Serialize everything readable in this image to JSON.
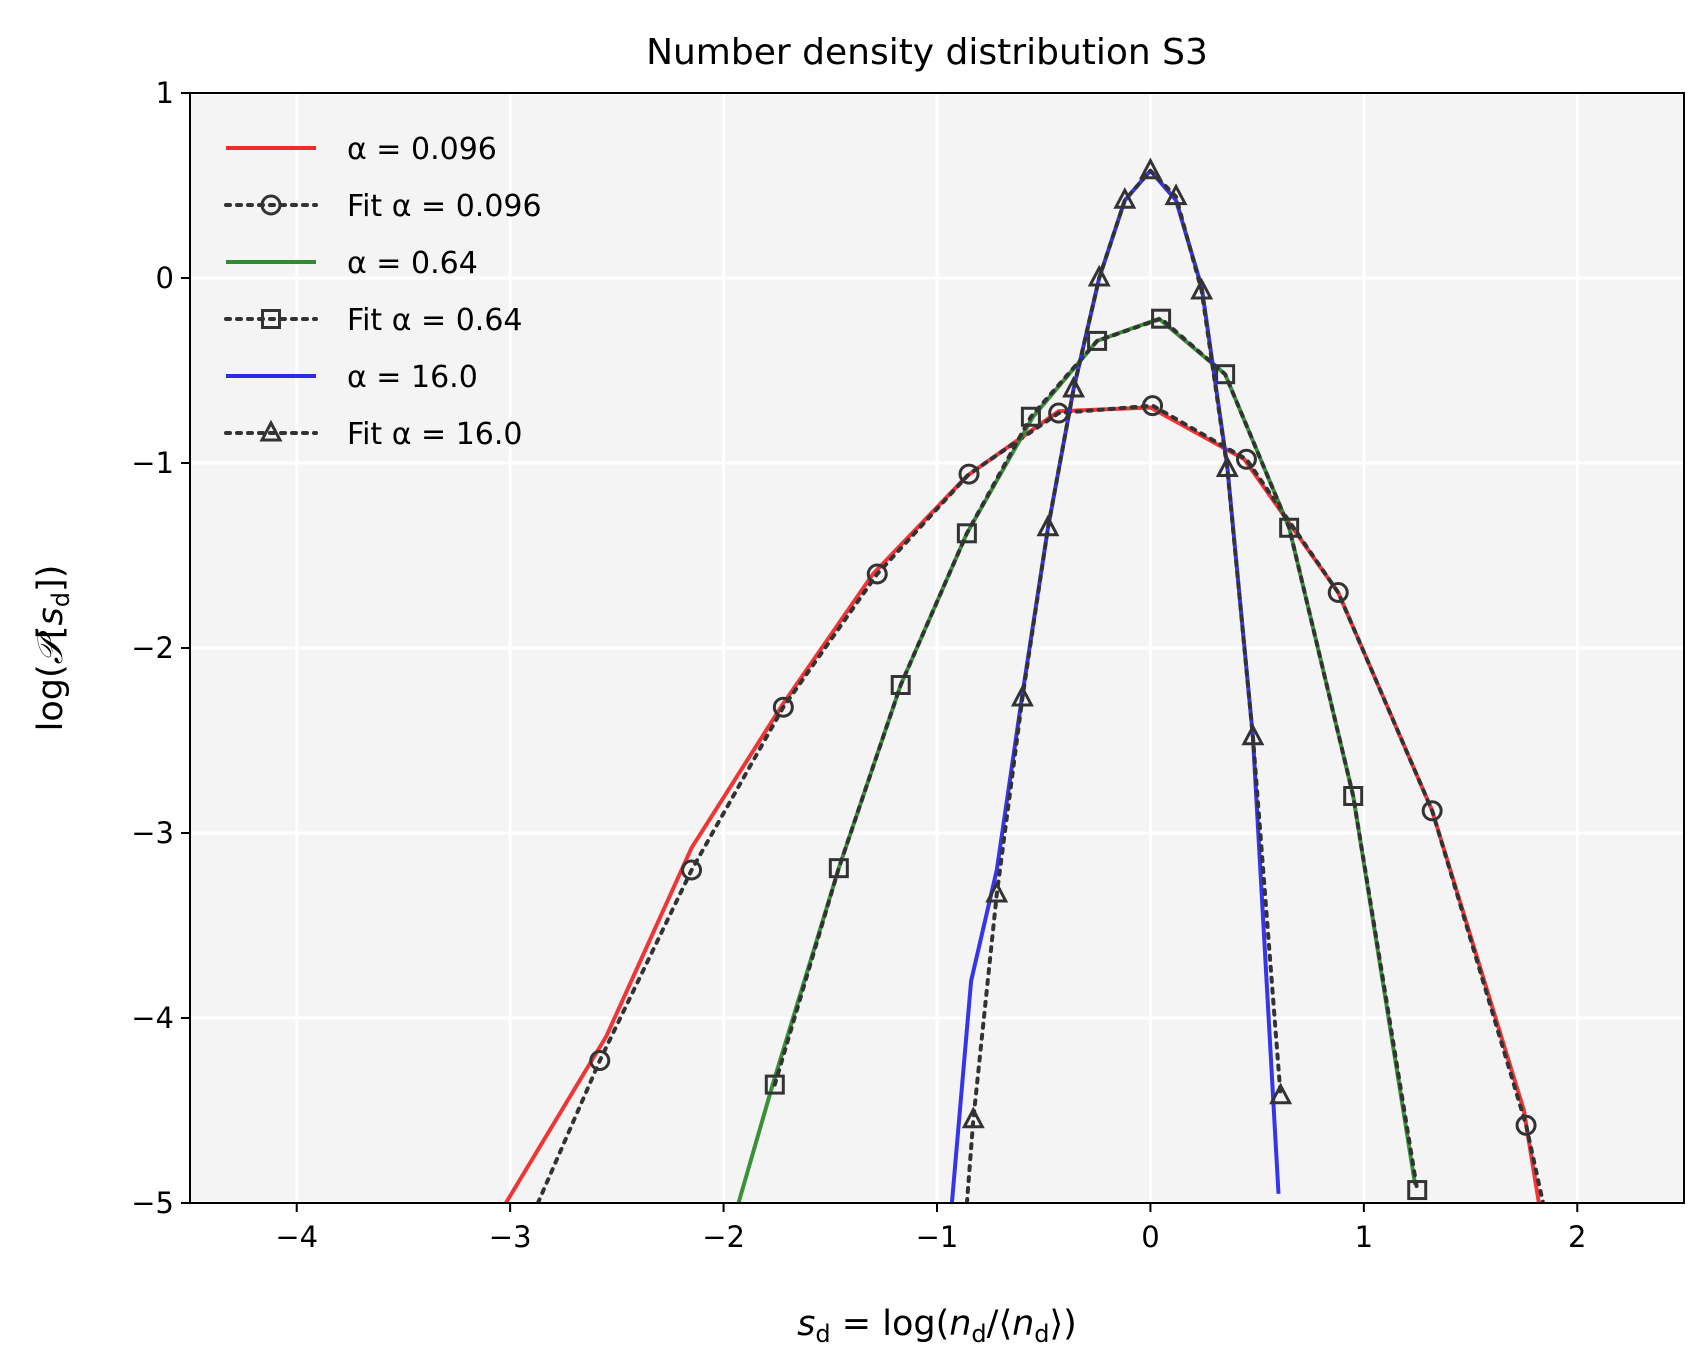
{
  "chart_data": {
    "type": "line",
    "title": "Number density distribution S3",
    "xlabel": "s_d = log(n_d/⟨n_d⟩)",
    "ylabel": "log(𝒫[s_d])",
    "xlim": [
      -4.5,
      2.5
    ],
    "ylim": [
      -5,
      1
    ],
    "xticks": [
      -4,
      -3,
      -2,
      -1,
      0,
      1,
      2
    ],
    "xtick_labels": [
      "−4",
      "−3",
      "−2",
      "−1",
      "0",
      "1",
      "2"
    ],
    "yticks": [
      -5,
      -4,
      -3,
      -2,
      -1,
      0,
      1
    ],
    "ytick_labels": [
      "−5",
      "−4",
      "−3",
      "−2",
      "−1",
      "0",
      "1"
    ],
    "grid": true,
    "legend_position": "top-left",
    "colors": {
      "background": "#f4f4f4",
      "grid": "#ffffff",
      "fit": "#333333"
    },
    "series": [
      {
        "name": "α = 0.096",
        "style": "solid",
        "color": "#ee2a2a",
        "x": [
          -3.02,
          -2.55,
          -2.15,
          -1.72,
          -1.3,
          -0.86,
          -0.43,
          0.0,
          0.44,
          0.88,
          1.32,
          1.75,
          1.82
        ],
        "y": [
          -5.0,
          -4.1,
          -3.08,
          -2.3,
          -1.6,
          -1.07,
          -0.72,
          -0.7,
          -0.98,
          -1.7,
          -2.88,
          -4.5,
          -5.0
        ]
      },
      {
        "name": "Fit α = 0.096",
        "style": "dotted",
        "marker": "circle",
        "color": "#333333",
        "x": [
          -2.87,
          -2.58,
          -2.15,
          -1.72,
          -1.28,
          -0.85,
          -0.43,
          0.01,
          0.45,
          0.88,
          1.32,
          1.76,
          1.84
        ],
        "y": [
          -5.0,
          -4.23,
          -3.2,
          -2.32,
          -1.6,
          -1.06,
          -0.73,
          -0.69,
          -0.98,
          -1.7,
          -2.88,
          -4.58,
          -5.0
        ]
      },
      {
        "name": "α = 0.64",
        "style": "solid",
        "color": "#2e8b2e",
        "x": [
          -1.93,
          -1.77,
          -1.46,
          -1.17,
          -0.86,
          -0.55,
          -0.25,
          0.04,
          0.35,
          0.65,
          0.95,
          1.24
        ],
        "y": [
          -5.0,
          -4.36,
          -3.19,
          -2.2,
          -1.38,
          -0.75,
          -0.34,
          -0.22,
          -0.52,
          -1.35,
          -2.8,
          -4.9
        ]
      },
      {
        "name": "Fit α = 0.64",
        "style": "dotted",
        "marker": "square",
        "color": "#333333",
        "x": [
          -1.76,
          -1.46,
          -1.17,
          -0.86,
          -0.56,
          -0.25,
          0.05,
          0.35,
          0.65,
          0.95,
          1.25
        ],
        "y": [
          -4.36,
          -3.19,
          -2.2,
          -1.38,
          -0.75,
          -0.34,
          -0.22,
          -0.52,
          -1.35,
          -2.8,
          -4.93
        ]
      },
      {
        "name": "α = 16.0",
        "style": "solid",
        "color": "#2a2ae8",
        "x": [
          -0.93,
          -0.84,
          -0.72,
          -0.6,
          -0.48,
          -0.36,
          -0.24,
          -0.12,
          0.0,
          0.12,
          0.24,
          0.36,
          0.48,
          0.6
        ],
        "y": [
          -5.0,
          -3.8,
          -3.2,
          -2.25,
          -1.35,
          -0.6,
          0.0,
          0.42,
          0.58,
          0.42,
          -0.05,
          -1.02,
          -2.48,
          -4.95
        ]
      },
      {
        "name": "Fit α = 16.0",
        "style": "dotted",
        "marker": "triangle",
        "color": "#333333",
        "x": [
          -0.86,
          -0.83,
          -0.72,
          -0.6,
          -0.48,
          -0.36,
          -0.24,
          -0.12,
          0.0,
          0.12,
          0.24,
          0.36,
          0.48,
          0.61
        ],
        "y": [
          -5.0,
          -4.55,
          -3.33,
          -2.27,
          -1.35,
          -0.6,
          0.0,
          0.42,
          0.58,
          0.44,
          -0.07,
          -1.03,
          -2.48,
          -4.42
        ]
      }
    ]
  }
}
